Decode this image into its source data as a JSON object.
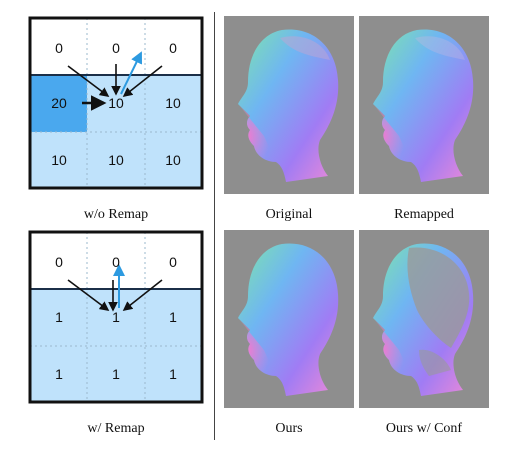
{
  "figure": {
    "left_panels": [
      {
        "caption": "w/o Remap",
        "cells": [
          [
            "0",
            "0",
            "0"
          ],
          [
            "20",
            "10",
            "10"
          ],
          [
            "10",
            "10",
            "10"
          ]
        ],
        "highlight_color": "#4aa8ee",
        "fill_color": "#bfe2fb",
        "arrow_blue": "#2d9ae0"
      },
      {
        "caption": "w/ Remap",
        "cells": [
          [
            "0",
            "0",
            "0"
          ],
          [
            "1",
            "1",
            "1"
          ],
          [
            "1",
            "1",
            "1"
          ]
        ],
        "fill_color": "#bfe2fb",
        "arrow_blue": "#2d9ae0"
      }
    ],
    "right_panels": [
      {
        "caption": "Original"
      },
      {
        "caption": "Remapped"
      },
      {
        "caption": "Ours"
      },
      {
        "caption": "Ours w/ Conf"
      }
    ]
  }
}
